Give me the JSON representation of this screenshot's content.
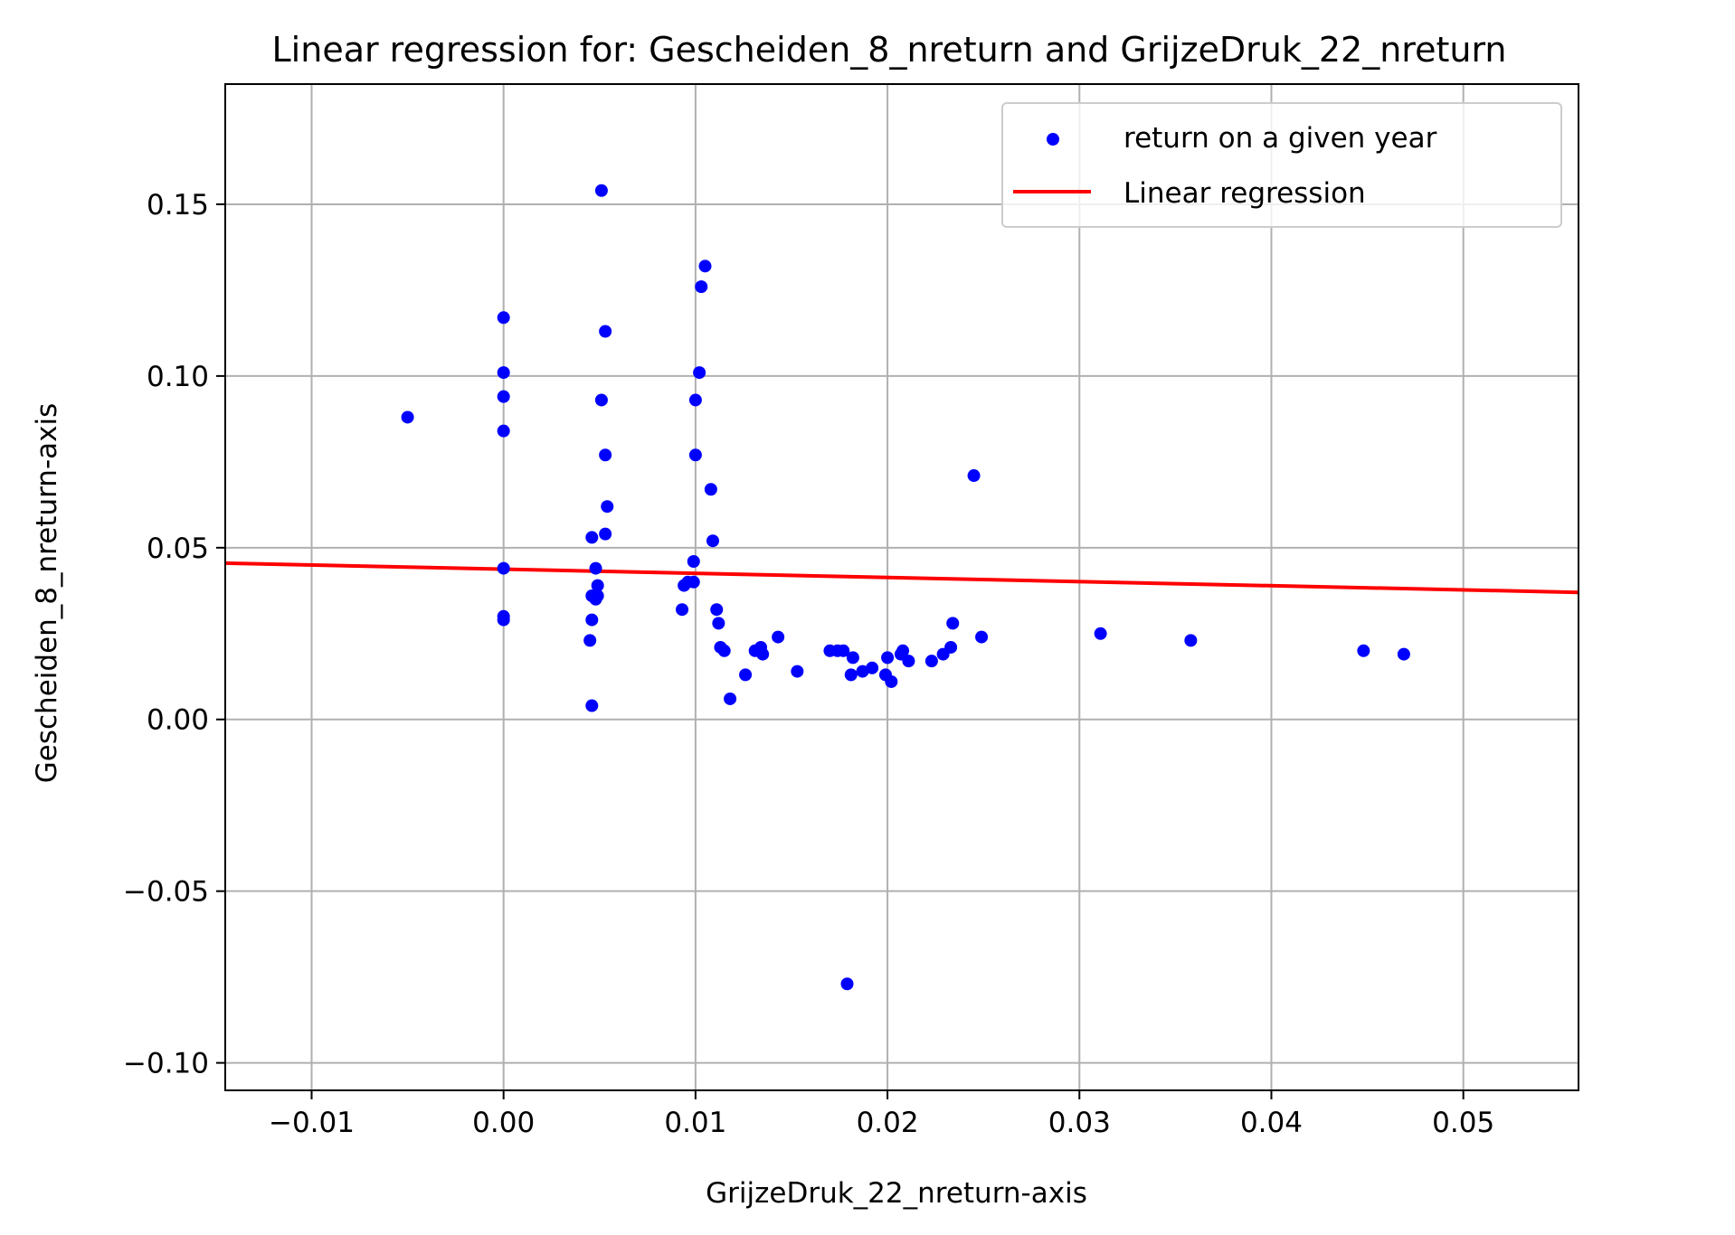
{
  "chart_data": {
    "type": "scatter",
    "title": "Linear regression for: Gescheiden_8_nreturn and GrijzeDruk_22_nreturn",
    "xlabel": "GrijzeDruk_22_nreturn-axis",
    "ylabel": "Gescheiden_8_nreturn-axis",
    "xlim": [
      -0.0145,
      0.056
    ],
    "ylim": [
      -0.108,
      0.185
    ],
    "xticks": [
      -0.01,
      0.0,
      0.01,
      0.02,
      0.03,
      0.04,
      0.05
    ],
    "xtick_labels": [
      "−0.01",
      "0.00",
      "0.01",
      "0.02",
      "0.03",
      "0.04",
      "0.05"
    ],
    "yticks": [
      -0.1,
      -0.05,
      0.0,
      0.05,
      0.1,
      0.15
    ],
    "ytick_labels": [
      "−0.10",
      "−0.05",
      "0.00",
      "0.05",
      "0.10",
      "0.15"
    ],
    "grid": true,
    "legend_position": "top-right",
    "series": [
      {
        "name": "return on a given year",
        "kind": "scatter",
        "color": "#0000ff",
        "points": [
          [
            -0.005,
            0.088
          ],
          [
            0.0,
            0.117
          ],
          [
            0.0,
            0.101
          ],
          [
            0.0,
            0.094
          ],
          [
            0.0,
            0.084
          ],
          [
            0.0,
            0.044
          ],
          [
            0.0,
            0.03
          ],
          [
            0.0,
            0.029
          ],
          [
            0.0046,
            0.053
          ],
          [
            0.0046,
            0.036
          ],
          [
            0.0046,
            0.029
          ],
          [
            0.0045,
            0.023
          ],
          [
            0.0046,
            0.004
          ],
          [
            0.0048,
            0.044
          ],
          [
            0.0049,
            0.039
          ],
          [
            0.0049,
            0.036
          ],
          [
            0.0048,
            0.035
          ],
          [
            0.0051,
            0.154
          ],
          [
            0.0053,
            0.113
          ],
          [
            0.0051,
            0.093
          ],
          [
            0.0053,
            0.077
          ],
          [
            0.0054,
            0.062
          ],
          [
            0.0053,
            0.054
          ],
          [
            0.0093,
            0.032
          ],
          [
            0.0094,
            0.039
          ],
          [
            0.0096,
            0.04
          ],
          [
            0.0099,
            0.04
          ],
          [
            0.0099,
            0.046
          ],
          [
            0.01,
            0.093
          ],
          [
            0.01,
            0.077
          ],
          [
            0.0102,
            0.101
          ],
          [
            0.0103,
            0.126
          ],
          [
            0.0105,
            0.132
          ],
          [
            0.0108,
            0.067
          ],
          [
            0.0109,
            0.052
          ],
          [
            0.0111,
            0.032
          ],
          [
            0.0112,
            0.028
          ],
          [
            0.0113,
            0.021
          ],
          [
            0.0115,
            0.02
          ],
          [
            0.0118,
            0.006
          ],
          [
            0.0126,
            0.013
          ],
          [
            0.0131,
            0.02
          ],
          [
            0.0134,
            0.021
          ],
          [
            0.0135,
            0.019
          ],
          [
            0.0143,
            0.024
          ],
          [
            0.0153,
            0.014
          ],
          [
            0.017,
            0.02
          ],
          [
            0.0174,
            0.02
          ],
          [
            0.0177,
            0.02
          ],
          [
            0.0179,
            -0.077
          ],
          [
            0.0181,
            0.013
          ],
          [
            0.0182,
            0.018
          ],
          [
            0.0187,
            0.014
          ],
          [
            0.0192,
            0.015
          ],
          [
            0.0199,
            0.013
          ],
          [
            0.02,
            0.018
          ],
          [
            0.0202,
            0.011
          ],
          [
            0.0207,
            0.019
          ],
          [
            0.0208,
            0.02
          ],
          [
            0.0211,
            0.017
          ],
          [
            0.0223,
            0.017
          ],
          [
            0.0229,
            0.019
          ],
          [
            0.0233,
            0.021
          ],
          [
            0.0234,
            0.028
          ],
          [
            0.0245,
            0.071
          ],
          [
            0.0249,
            0.024
          ],
          [
            0.0311,
            0.025
          ],
          [
            0.0358,
            0.023
          ],
          [
            0.0448,
            0.02
          ],
          [
            0.0469,
            0.019
          ]
        ]
      },
      {
        "name": "Linear regression",
        "kind": "line",
        "color": "#ff0000",
        "x": [
          -0.0145,
          0.056
        ],
        "y": [
          0.0455,
          0.037
        ]
      }
    ]
  }
}
